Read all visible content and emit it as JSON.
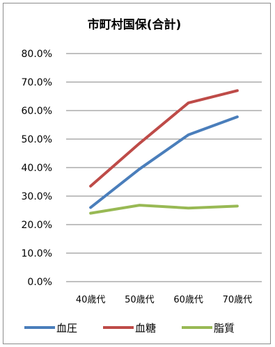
{
  "chart_data": {
    "type": "line",
    "title": "市町村国保(合計)",
    "categories": [
      "40歳代",
      "50歳代",
      "60歳代",
      "70歳代"
    ],
    "y_tick_labels": [
      "80.0%",
      "70.0%",
      "60.0%",
      "50.0%",
      "40.0%",
      "30.0%",
      "20.0%",
      "10.0%",
      "0.0%"
    ],
    "ylim": [
      0,
      80
    ],
    "y_unit": "%",
    "grid": true,
    "legend_position": "bottom",
    "series": [
      {
        "name": "血圧",
        "color": "#4a7ebb",
        "values": [
          26.0,
          39.5,
          51.5,
          57.8
        ]
      },
      {
        "name": "血糖",
        "color": "#be4b48",
        "values": [
          33.5,
          48.5,
          62.7,
          67.0
        ]
      },
      {
        "name": "脂質",
        "color": "#98b954",
        "values": [
          24.0,
          26.8,
          25.8,
          26.5
        ]
      }
    ]
  }
}
